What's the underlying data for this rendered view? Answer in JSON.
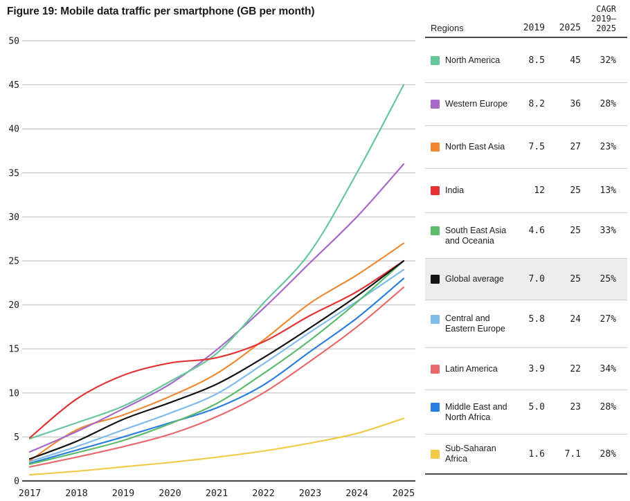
{
  "title": "Figure 19: Mobile data traffic per smartphone (GB per month)",
  "table": {
    "header": {
      "regions": "Regions",
      "y2019": "2019",
      "y2025": "2025",
      "cagr_line1": "CAGR",
      "cagr_line2": "2019–",
      "cagr_line3": "2025"
    },
    "highlight_bg": "#ededed",
    "rows": [
      {
        "label": "North America",
        "color": "#66c898",
        "v2019": "8.5",
        "v2025": "45",
        "cagr": "32%",
        "highlight": false
      },
      {
        "label": "Western Europe",
        "color": "#a569c8",
        "v2019": "8.2",
        "v2025": "36",
        "cagr": "28%",
        "highlight": false
      },
      {
        "label": "North East Asia",
        "color": "#ee8a33",
        "v2019": "7.5",
        "v2025": "27",
        "cagr": "23%",
        "highlight": false
      },
      {
        "label": "India",
        "color": "#e23434",
        "v2019": "12",
        "v2025": "25",
        "cagr": "13%",
        "highlight": false
      },
      {
        "label": "South East Asia\nand Oceania",
        "color": "#5dbb6c",
        "v2019": "4.6",
        "v2025": "25",
        "cagr": "33%",
        "highlight": false
      },
      {
        "label": "Global average",
        "color": "#141414",
        "v2019": "7.0",
        "v2025": "25",
        "cagr": "25%",
        "highlight": true
      },
      {
        "label": "Central and\nEastern Europe",
        "color": "#7fbceb",
        "v2019": "5.8",
        "v2025": "24",
        "cagr": "27%",
        "highlight": false
      },
      {
        "label": "Latin America",
        "color": "#e8696b",
        "v2019": "3.9",
        "v2025": "22",
        "cagr": "34%",
        "highlight": false
      },
      {
        "label": "Middle East and\nNorth Africa",
        "color": "#2b7de0",
        "v2019": "5.0",
        "v2025": "23",
        "cagr": "28%",
        "highlight": false
      },
      {
        "label": "Sub-Saharan Africa",
        "color": "#f1ca47",
        "v2019": "1.6",
        "v2025": "7.1",
        "cagr": "28%",
        "highlight": false
      }
    ]
  },
  "chart_data": {
    "type": "line",
    "title": "Mobile data traffic per smartphone (GB per month)",
    "x": [
      2017,
      2018,
      2019,
      2020,
      2021,
      2022,
      2023,
      2024,
      2025
    ],
    "ylim": [
      0,
      50
    ],
    "ytick_step": 5,
    "grid": true,
    "grid_color": "#cbcbcb",
    "axis_color": "#4a4a4a",
    "legend_position": "right-table",
    "series": [
      {
        "name": "Sub-Saharan Africa",
        "color": "#f1ca47",
        "values": [
          0.7,
          1.1,
          1.6,
          2.1,
          2.7,
          3.4,
          4.3,
          5.4,
          7.1
        ]
      },
      {
        "name": "Central and Eastern Europe",
        "color": "#7fbceb",
        "values": [
          2.2,
          3.9,
          5.8,
          7.7,
          9.9,
          13.3,
          16.9,
          20.4,
          24
        ]
      },
      {
        "name": "Middle East and North Africa",
        "color": "#2b7de0",
        "values": [
          2.0,
          3.5,
          5.0,
          6.6,
          8.3,
          10.9,
          14.7,
          18.5,
          23
        ]
      },
      {
        "name": "Latin America",
        "color": "#e8696b",
        "values": [
          1.6,
          2.7,
          3.9,
          5.3,
          7.3,
          10.0,
          13.6,
          17.5,
          22
        ]
      },
      {
        "name": "South East Asia and Oceania",
        "color": "#5dbb6c",
        "values": [
          1.9,
          3.2,
          4.6,
          6.5,
          8.8,
          12.2,
          16.0,
          20.3,
          25
        ]
      },
      {
        "name": "North East Asia",
        "color": "#ee8a33",
        "values": [
          2.3,
          5.8,
          7.5,
          9.6,
          12.2,
          16.0,
          20.2,
          23.4,
          27
        ]
      },
      {
        "name": "Western Europe",
        "color": "#a569c8",
        "values": [
          3.3,
          5.6,
          8.2,
          11.0,
          14.9,
          19.6,
          24.8,
          30.0,
          36
        ]
      },
      {
        "name": "North America",
        "color": "#66c898",
        "values": [
          4.8,
          6.6,
          8.5,
          11.3,
          14.5,
          20.2,
          26.0,
          35.0,
          45
        ]
      },
      {
        "name": "India",
        "color": "#e23434",
        "values": [
          4.9,
          9.3,
          12.0,
          13.4,
          14.0,
          15.8,
          18.8,
          21.5,
          25
        ]
      },
      {
        "name": "Global average",
        "color": "#141414",
        "values": [
          2.5,
          4.5,
          7.0,
          8.9,
          11.0,
          14.0,
          17.4,
          21.0,
          25
        ]
      }
    ]
  }
}
